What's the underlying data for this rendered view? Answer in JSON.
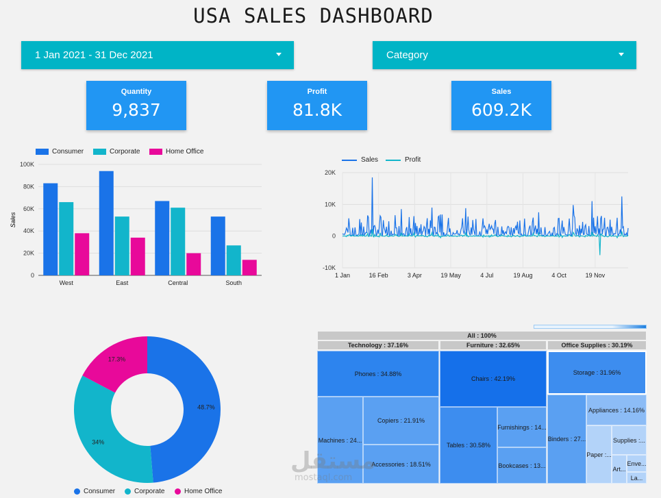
{
  "title": "USA SALES DASHBOARD",
  "filters": {
    "date_range": "1 Jan 2021 - 31 Dec 2021",
    "category": "Category"
  },
  "kpis": [
    {
      "label": "Quantity",
      "value": "9,837"
    },
    {
      "label": "Profit",
      "value": "81.8K"
    },
    {
      "label": "Sales",
      "value": "609.2K"
    }
  ],
  "colors": {
    "consumer": "#1a73e8",
    "corporate": "#12b5cb",
    "home_office": "#e8099a",
    "sales_line": "#1a73e8",
    "profit_line": "#12b5cb"
  },
  "chart_data": [
    {
      "type": "bar",
      "categories": [
        "West",
        "East",
        "Central",
        "South"
      ],
      "series": [
        {
          "name": "Consumer",
          "values": [
            83000,
            94000,
            67000,
            53000
          ]
        },
        {
          "name": "Corporate",
          "values": [
            66000,
            53000,
            61000,
            27000
          ]
        },
        {
          "name": "Home Office",
          "values": [
            38000,
            34000,
            20000,
            14000
          ]
        }
      ],
      "ylabel": "Sales",
      "ylim": [
        0,
        100000
      ],
      "yticks": [
        "0",
        "20K",
        "40K",
        "60K",
        "80K",
        "100K"
      ],
      "legend": "top"
    },
    {
      "type": "line",
      "series": [
        {
          "name": "Sales"
        },
        {
          "name": "Profit"
        }
      ],
      "xticks": [
        "1 Jan",
        "16 Feb",
        "3 Apr",
        "19 May",
        "4 Jul",
        "19 Aug",
        "4 Oct",
        "19 Nov"
      ],
      "yticks": [
        "-10K",
        "0",
        "10K",
        "20K"
      ],
      "ylim": [
        -10000,
        20000
      ],
      "legend": "top",
      "peaks": [
        {
          "date": "2021-02-08",
          "sales": 18500
        },
        {
          "date": "2021-03-17",
          "sales": 8500
        },
        {
          "date": "2021-04-25",
          "sales": 9000
        },
        {
          "date": "2021-06-07",
          "sales": 8800
        },
        {
          "date": "2021-09-08",
          "sales": 7500
        },
        {
          "date": "2021-10-22",
          "sales": 9800
        },
        {
          "date": "2021-11-15",
          "sales": 11000
        },
        {
          "date": "2021-12-23",
          "sales": 12500
        }
      ],
      "troughs": [
        {
          "date": "2021-11-25",
          "profit": -6000
        }
      ]
    },
    {
      "type": "pie",
      "donut": true,
      "slices": [
        {
          "name": "Consumer",
          "value": 48.7,
          "label": "48.7%"
        },
        {
          "name": "Corporate",
          "value": 34.0,
          "label": "34%"
        },
        {
          "name": "Home Office",
          "value": 17.3,
          "label": "17.3%"
        }
      ],
      "legend": "bottom"
    },
    {
      "type": "treemap",
      "root": "All : 100%",
      "groups": [
        {
          "name": "Technology : 37.16%",
          "children": [
            "Phones : 34.88%",
            "Machines : 24...",
            "Copiers : 21.91%",
            "Accessories : 18.51%"
          ]
        },
        {
          "name": "Furniture : 32.65%",
          "children": [
            "Chairs : 42.19%",
            "Tables : 30.58%",
            "Furnishings : 14...",
            "Bookcases : 13..."
          ]
        },
        {
          "name": "Office Supplies : 30.19%",
          "children": [
            "Storage : 31.96%",
            "Binders : 27...",
            "Appliances : 14.16%",
            "Paper :...",
            "Supplies :...",
            "Art...",
            "Enve...",
            "La..."
          ]
        }
      ]
    }
  ],
  "watermark": {
    "logo": "مستقل",
    "site": "mostaql.com"
  }
}
